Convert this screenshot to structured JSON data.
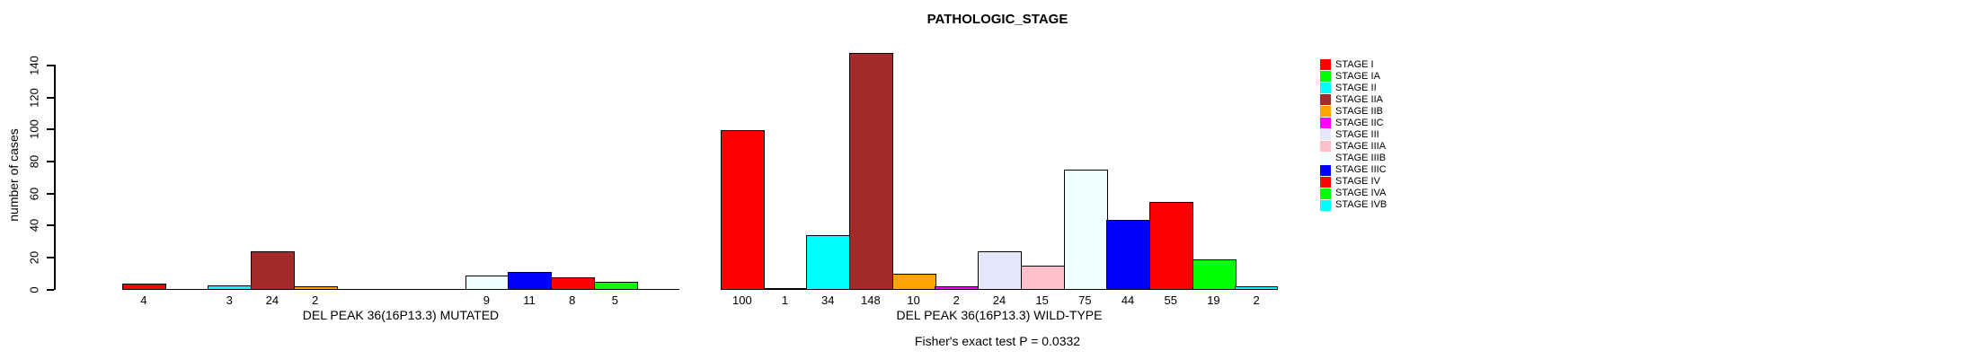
{
  "chart_data": {
    "type": "bar",
    "title": "PATHOLOGIC_STAGE",
    "ylabel": "number of cases",
    "footnote": "Fisher's exact test P = 0.0332",
    "ylim": [
      0,
      140
    ],
    "yticks": [
      0,
      20,
      40,
      60,
      80,
      100,
      120,
      140
    ],
    "grid": false,
    "legend_position": "right",
    "categories": [
      "STAGE I",
      "STAGE IA",
      "STAGE II",
      "STAGE IIA",
      "STAGE IIB",
      "STAGE IIC",
      "STAGE III",
      "STAGE IIIA",
      "STAGE IIIB",
      "STAGE IIIC",
      "STAGE IV",
      "STAGE IVA",
      "STAGE IVB"
    ],
    "colors": [
      "#FF0000",
      "#00FF00",
      "#00FFFF",
      "#A52A2A",
      "#FFA500",
      "#FF00FF",
      "#E6E6FA",
      "#FFC0CB",
      "#F0FFFF",
      "#0000FF",
      "#FF0000",
      "#00FF00",
      "#00FFFF"
    ],
    "series": [
      {
        "name": "DEL PEAK 36(16P13.3) MUTATED",
        "values": [
          4,
          0,
          3,
          24,
          2,
          0,
          0,
          0,
          9,
          11,
          8,
          5,
          0
        ],
        "bar_labels": [
          "4",
          "",
          "3",
          "24",
          "2",
          "",
          "",
          "",
          "9",
          "11",
          "8",
          "5",
          ""
        ]
      },
      {
        "name": "DEL PEAK 36(16P13.3) WILD-TYPE",
        "values": [
          100,
          1,
          34,
          148,
          10,
          2,
          24,
          15,
          75,
          44,
          55,
          19,
          2
        ],
        "bar_labels": [
          "100",
          "1",
          "34",
          "148",
          "10",
          "2",
          "24",
          "15",
          "75",
          "44",
          "55",
          "19",
          "2"
        ]
      }
    ],
    "axis_color": "#000000",
    "background_color": "#FFFFFF"
  }
}
